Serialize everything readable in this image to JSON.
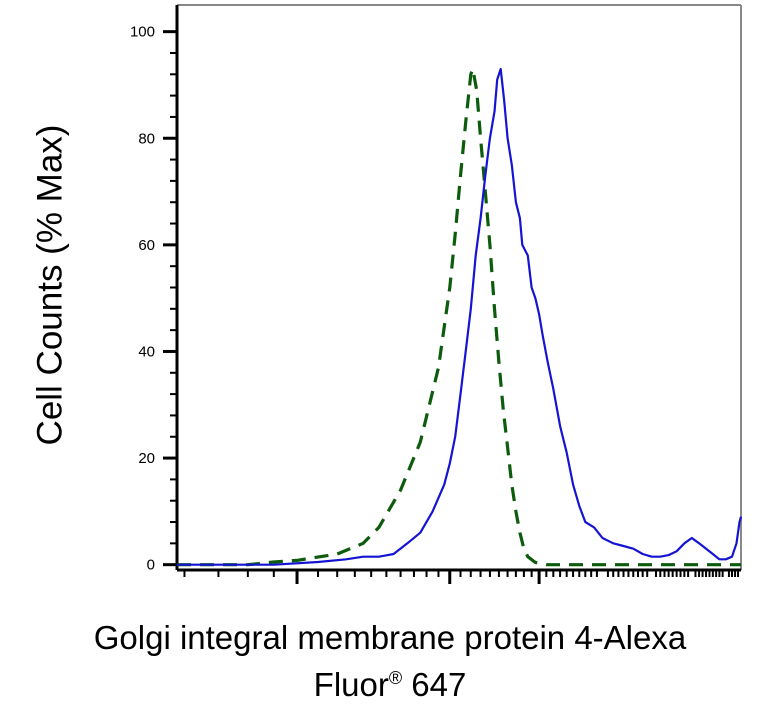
{
  "chart_data": {
    "type": "line",
    "title": "",
    "xlabel_line1": "Golgi integral membrane protein 4-Alexa",
    "xlabel_line2_prefix": "Fluor",
    "xlabel_registered": "®",
    "xlabel_line2_suffix": " 647",
    "ylabel": "Cell Counts (% Max)",
    "xscale": "log",
    "xlim": [
      0.58,
      7.5
    ],
    "ylim": [
      -1,
      105
    ],
    "yticks": [
      0,
      20,
      40,
      60,
      80,
      100
    ],
    "ytick_labels": [
      "0",
      "20",
      "40",
      "60",
      "80",
      "100"
    ],
    "xticks_major": [
      1,
      2,
      3
    ],
    "grid": false,
    "legend": "none",
    "series": [
      {
        "style": "dashed",
        "color": "#0d5c0d",
        "points": [
          [
            0.58,
            0
          ],
          [
            0.8,
            0
          ],
          [
            0.9,
            0.5
          ],
          [
            1.0,
            0.8
          ],
          [
            1.2,
            2
          ],
          [
            1.35,
            4
          ],
          [
            1.45,
            7
          ],
          [
            1.6,
            14
          ],
          [
            1.75,
            23
          ],
          [
            1.9,
            37
          ],
          [
            2.0,
            52
          ],
          [
            2.05,
            62
          ],
          [
            2.1,
            73
          ],
          [
            2.15,
            83
          ],
          [
            2.2,
            92
          ],
          [
            2.22,
            93
          ],
          [
            2.26,
            89
          ],
          [
            2.3,
            80
          ],
          [
            2.35,
            70
          ],
          [
            2.4,
            60
          ],
          [
            2.45,
            48
          ],
          [
            2.5,
            38
          ],
          [
            2.55,
            29
          ],
          [
            2.6,
            22
          ],
          [
            2.65,
            15
          ],
          [
            2.7,
            10
          ],
          [
            2.75,
            6
          ],
          [
            2.8,
            3
          ],
          [
            2.85,
            1.5
          ],
          [
            2.95,
            0.4
          ],
          [
            3.1,
            0
          ],
          [
            7.5,
            0
          ]
        ]
      },
      {
        "style": "solid",
        "color": "#1414d2",
        "points": [
          [
            0.58,
            0
          ],
          [
            0.9,
            0
          ],
          [
            1.1,
            0.5
          ],
          [
            1.25,
            1
          ],
          [
            1.35,
            1.5
          ],
          [
            1.45,
            1.5
          ],
          [
            1.55,
            2
          ],
          [
            1.65,
            4
          ],
          [
            1.75,
            6
          ],
          [
            1.85,
            10
          ],
          [
            1.95,
            15
          ],
          [
            2.0,
            19
          ],
          [
            2.05,
            24
          ],
          [
            2.1,
            32
          ],
          [
            2.15,
            40
          ],
          [
            2.2,
            48
          ],
          [
            2.25,
            58
          ],
          [
            2.3,
            65
          ],
          [
            2.35,
            73
          ],
          [
            2.4,
            80
          ],
          [
            2.45,
            85
          ],
          [
            2.48,
            91
          ],
          [
            2.52,
            93
          ],
          [
            2.56,
            87
          ],
          [
            2.6,
            80
          ],
          [
            2.65,
            75
          ],
          [
            2.7,
            68
          ],
          [
            2.75,
            65
          ],
          [
            2.78,
            60
          ],
          [
            2.85,
            58
          ],
          [
            2.9,
            52
          ],
          [
            2.95,
            50
          ],
          [
            3.0,
            47
          ],
          [
            3.05,
            43
          ],
          [
            3.12,
            38
          ],
          [
            3.2,
            33
          ],
          [
            3.3,
            26
          ],
          [
            3.4,
            21
          ],
          [
            3.5,
            15
          ],
          [
            3.6,
            11
          ],
          [
            3.7,
            8
          ],
          [
            3.85,
            7
          ],
          [
            4.0,
            5
          ],
          [
            4.2,
            4
          ],
          [
            4.4,
            3.5
          ],
          [
            4.6,
            3
          ],
          [
            4.8,
            2
          ],
          [
            5.0,
            1.5
          ],
          [
            5.2,
            1.5
          ],
          [
            5.4,
            1.8
          ],
          [
            5.6,
            2.5
          ],
          [
            5.8,
            4
          ],
          [
            6.0,
            5
          ],
          [
            6.2,
            4
          ],
          [
            6.4,
            3
          ],
          [
            6.6,
            2
          ],
          [
            6.8,
            1
          ],
          [
            7.0,
            1
          ],
          [
            7.2,
            1.5
          ],
          [
            7.35,
            4
          ],
          [
            7.45,
            8
          ],
          [
            7.5,
            9
          ]
        ]
      }
    ]
  }
}
